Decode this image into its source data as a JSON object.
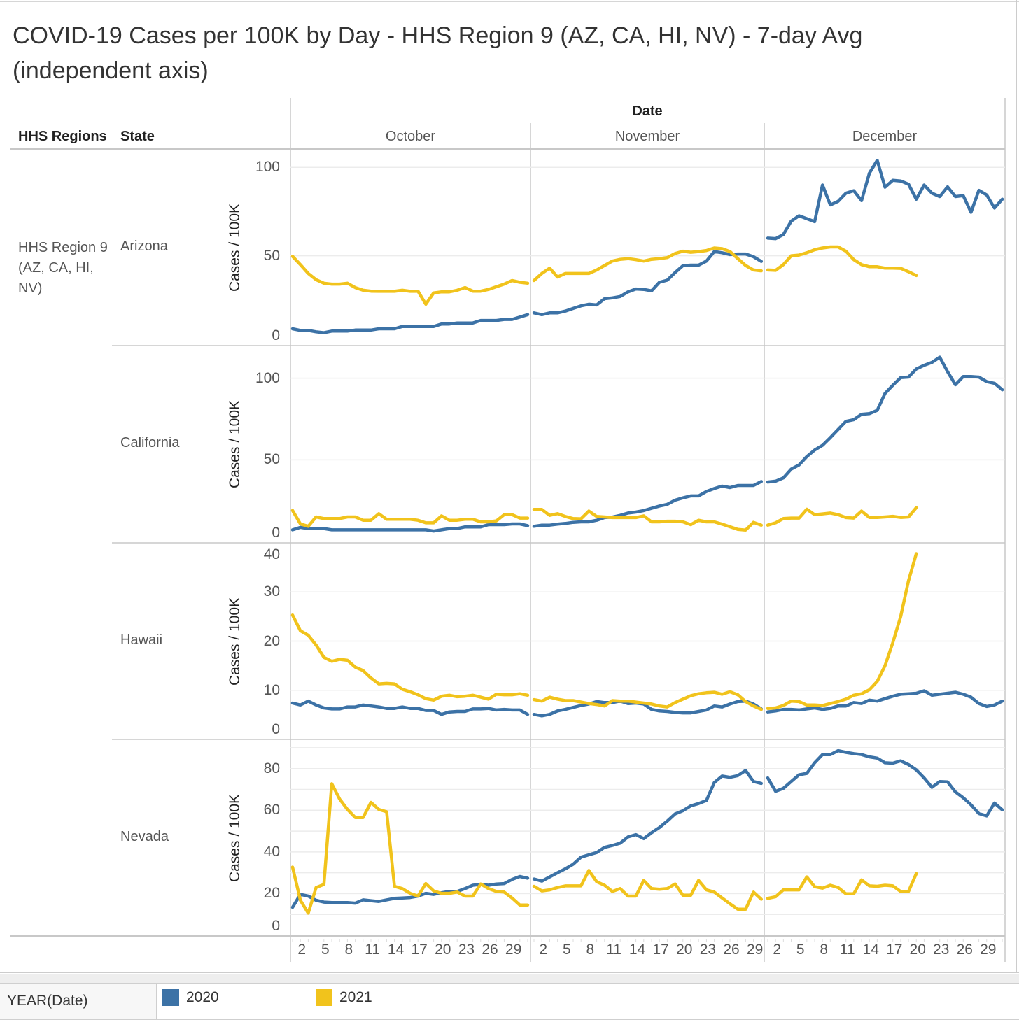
{
  "title": "COVID-19 Cases per 100K by Day - HHS Region 9 (AZ, CA, HI, NV) - 7-day Avg (independent axis)",
  "headers": {
    "regions": "HHS Regions",
    "state": "State",
    "date": "Date"
  },
  "region_label": "HHS Region 9 (AZ, CA, HI, NV)",
  "chart_data": {
    "type": "line",
    "title": "COVID-19 Cases per 100K by Day - HHS Region 9 (AZ, CA, HI, NV) - 7-day Avg (independent axis)",
    "xlabel": "Date",
    "ylabel": "Cases / 100K",
    "columns": [
      "October",
      "November",
      "December"
    ],
    "x_ticks": [
      2,
      5,
      8,
      11,
      14,
      17,
      20,
      23,
      26,
      29
    ],
    "grid": true,
    "legend": {
      "title": "YEAR(Date)",
      "placement": "bottom",
      "entries": [
        {
          "label": "2020",
          "color": "#3c72a6"
        },
        {
          "label": "2021",
          "color": "#f1c31c"
        }
      ]
    },
    "rows": [
      {
        "state": "Arizona",
        "ylim": [
          0,
          110
        ],
        "y_ticks": [
          0,
          50,
          100
        ],
        "gridlines": [
          50,
          100
        ],
        "series": {
          "2020": [
            [
              8.7,
              7.8,
              7.8,
              7.0,
              6.5,
              7.4,
              7.4,
              7.4,
              8,
              8,
              8,
              8.7,
              8.7,
              8.7,
              10,
              10,
              10,
              10,
              10,
              11.4,
              11.4,
              12,
              12,
              12,
              13.4,
              13.4,
              13.4,
              14,
              14,
              15.3,
              16.7
            ],
            [
              17.7,
              16.7,
              17.7,
              17.7,
              18.7,
              20.2,
              21.7,
              22.6,
              22.2,
              25.7,
              26.2,
              27,
              29.6,
              31.2,
              31,
              30.2,
              35,
              36.2,
              40.5,
              44.4,
              44.7,
              44.7,
              47,
              52.4,
              51.7,
              50.7,
              51,
              51,
              49.5,
              46.8
            ],
            [
              60,
              59.7,
              62,
              69.6,
              72.6,
              71,
              69.3,
              90,
              78.8,
              80.8,
              85.4,
              86.8,
              81.2,
              96.7,
              104,
              88.8,
              92.7,
              92.3,
              90.5,
              82,
              90,
              85.4,
              83.5,
              89,
              83.5,
              84,
              74.6,
              87,
              84.4,
              77,
              82
            ]
          ],
          "2021": [
            [
              49.7,
              45,
              40,
              36.5,
              34.5,
              34,
              34,
              34.5,
              32,
              30.5,
              30,
              29.9,
              29.9,
              29.9,
              30.5,
              29.9,
              30,
              22.6,
              29,
              29.6,
              29.6,
              30.5,
              32,
              30,
              30,
              31,
              32.5,
              34,
              36,
              35,
              34.5
            ],
            [
              36,
              40,
              43,
              38,
              40,
              40,
              40,
              40,
              42,
              44.5,
              47,
              48,
              48.4,
              47.8,
              47,
              48,
              48.4,
              49,
              51.3,
              52.6,
              52,
              52.4,
              53,
              54.4,
              54,
              52.4,
              48.4,
              44.5,
              42,
              41.5
            ],
            [
              42,
              41.8,
              45,
              50,
              50.4,
              51.7,
              53.4,
              54.4,
              55,
              55,
              52.6,
              47.8,
              45,
              43.8,
              43.8,
              43,
              43,
              42.9,
              41,
              38.8
            ]
          ]
        }
      },
      {
        "state": "California",
        "ylim": [
          0,
          120
        ],
        "y_ticks": [
          0,
          50,
          100
        ],
        "gridlines": [
          50,
          100
        ],
        "series": {
          "2020": [
            [
              7.1,
              8.6,
              7.9,
              7.9,
              7.9,
              7.1,
              7.1,
              7.1,
              7.1,
              7.1,
              7.1,
              7.1,
              7.1,
              7.1,
              7.1,
              7.1,
              7.1,
              7.1,
              6.4,
              7.1,
              7.9,
              7.9,
              8.9,
              8.9,
              8.9,
              10.3,
              10.3,
              10.3,
              10.7,
              10.7,
              9.7
            ],
            [
              9.3,
              10,
              10,
              10.6,
              11,
              11.7,
              12,
              12,
              13,
              14.6,
              14.9,
              16,
              17.4,
              18,
              18.9,
              20.3,
              21.7,
              22.7,
              25.3,
              26.7,
              27.9,
              27.9,
              30.6,
              32.4,
              33.9,
              33,
              34.3,
              34.3,
              34.3,
              36.7
            ],
            [
              36.4,
              36.9,
              38.9,
              44.3,
              46.9,
              52,
              56,
              58.9,
              63.6,
              68.6,
              73.6,
              74.6,
              77.9,
              78.3,
              80.3,
              90.7,
              95.7,
              100.4,
              100.7,
              105.7,
              107.9,
              109.7,
              112.9,
              104,
              96,
              101,
              101,
              100.7,
              97.9,
              96.9,
              92.9
            ]
          ],
          "2021": [
            [
              19,
              10.7,
              9.3,
              15,
              14,
              14,
              14,
              15,
              15,
              13,
              13,
              17,
              13.6,
              13.6,
              13.6,
              13.6,
              13,
              11.4,
              11.4,
              15.7,
              13,
              13,
              13.6,
              13.6,
              12,
              12,
              12.6,
              16.4,
              16.4,
              14.3,
              14.3
            ],
            [
              19.6,
              19.6,
              16,
              17,
              15.3,
              14,
              13.9,
              18.6,
              15.3,
              15,
              14.6,
              14.6,
              14.6,
              14.6,
              15.7,
              12,
              12,
              12.4,
              12.4,
              12,
              10.3,
              13,
              12,
              12,
              10.6,
              9,
              7.4,
              7,
              11.7,
              10
            ],
            [
              10,
              11.4,
              14,
              14.3,
              14.3,
              19.7,
              16.4,
              16.9,
              17.4,
              16.4,
              14.6,
              14.3,
              18.6,
              14.7,
              14.7,
              15,
              15.4,
              14.7,
              15,
              20.7
            ]
          ]
        }
      },
      {
        "state": "Hawaii",
        "ylim": [
          0,
          40
        ],
        "y_ticks": [
          0,
          10,
          20,
          30,
          40
        ],
        "gridlines": [
          10,
          20,
          30
        ],
        "series": {
          "2020": [
            [
              7.4,
              7,
              7.8,
              7,
              6.4,
              6.2,
              6.2,
              6.6,
              6.6,
              7,
              6.8,
              6.6,
              6.3,
              6.3,
              6.6,
              6.3,
              6.3,
              5.9,
              5.9,
              5.1,
              5.6,
              5.7,
              5.7,
              6.2,
              6.2,
              6.3,
              6,
              6.1,
              6,
              6,
              5.1
            ],
            [
              5.1,
              4.8,
              5.1,
              5.8,
              6.1,
              6.5,
              6.9,
              7.2,
              7.7,
              7.5,
              7.5,
              7.8,
              7.3,
              7.4,
              7.2,
              6.1,
              5.8,
              5.7,
              5.5,
              5.4,
              5.4,
              5.7,
              6,
              6.8,
              6.6,
              7.2,
              7.7,
              7.8,
              7.2,
              6.2
            ],
            [
              5.6,
              5.8,
              6.1,
              6.1,
              6,
              6.2,
              6.4,
              6.1,
              6.3,
              6.8,
              6.8,
              7.5,
              7.3,
              8,
              7.8,
              8.3,
              8.8,
              9.2,
              9.3,
              9.4,
              9.9,
              9,
              9.2,
              9.4,
              9.6,
              9.2,
              8.6,
              7.3,
              6.7,
              7,
              7.8
            ]
          ],
          "2021": [
            [
              25.3,
              22.1,
              21.2,
              19.2,
              16.7,
              15.9,
              16.3,
              16.1,
              14.7,
              14,
              12.5,
              11.3,
              11.4,
              11.3,
              10.2,
              9.7,
              9.1,
              8.3,
              8,
              8.8,
              9,
              8.7,
              8.8,
              9,
              8.6,
              8.2,
              9.2,
              9.1,
              9.1,
              9.3,
              9
            ],
            [
              8.1,
              7.8,
              8.6,
              8.2,
              7.9,
              7.9,
              7.6,
              7.3,
              7.1,
              6.8,
              7.9,
              7.8,
              7.8,
              7.6,
              7.4,
              7.2,
              6.8,
              6.6,
              7.5,
              8.2,
              8.9,
              9.3,
              9.5,
              9.6,
              9.2,
              9.7,
              9.1,
              7.7,
              6.8,
              6.1
            ],
            [
              6.3,
              6.4,
              6.9,
              7.8,
              7.7,
              7,
              7,
              6.9,
              7.3,
              7.7,
              8.2,
              9,
              9.3,
              10.1,
              11.8,
              15,
              19.7,
              25,
              32.3,
              37.8
            ]
          ]
        }
      },
      {
        "state": "Nevada",
        "ylim": [
          0,
          94
        ],
        "y_ticks": [
          0,
          20,
          40,
          60,
          80
        ],
        "gridlines": [
          10,
          20,
          30,
          40,
          50,
          60,
          70,
          80,
          90
        ],
        "series": {
          "2020": [
            [
              13.4,
              19.6,
              18.8,
              16.8,
              15.9,
              15.7,
              15.7,
              15.7,
              15.4,
              17,
              16.6,
              16.2,
              17,
              17.7,
              17.9,
              18.1,
              18.8,
              20.1,
              19.6,
              20.4,
              21,
              21,
              22.4,
              24,
              24.4,
              24,
              24.6,
              24.8,
              26.8,
              28.2,
              27.4
            ],
            [
              27,
              26,
              28,
              30,
              31.9,
              34.1,
              37.5,
              38.6,
              39.7,
              42.2,
              43.1,
              44.2,
              47.2,
              48.3,
              46.4,
              49.2,
              51.7,
              54.8,
              58.2,
              59.8,
              62.1,
              63.2,
              64.7,
              73.3,
              76.4,
              75.8,
              76.6,
              79.1,
              73.8,
              72.9
            ],
            [
              75.5,
              69.1,
              70.5,
              73.8,
              77,
              77.7,
              82.8,
              86.7,
              86.7,
              88.6,
              87.8,
              87.2,
              86.7,
              85.6,
              85,
              82.8,
              82.6,
              83.7,
              81.9,
              79.4,
              75.5,
              71,
              73.8,
              73.6,
              68.8,
              66,
              62.6,
              58.4,
              57.3,
              63.5,
              60.2
            ]
          ],
          "2021": [
            [
              32.7,
              16.8,
              10.6,
              22.9,
              24.4,
              72.7,
              65.4,
              60.4,
              56.5,
              56.5,
              63.8,
              60.4,
              59.3,
              23.5,
              22.4,
              20.1,
              18.8,
              24.8,
              21.3,
              20.1,
              20.1,
              20.7,
              18.8,
              18.8,
              24.6,
              22.4,
              21,
              20.7,
              17.9,
              14.5,
              14.5
            ],
            [
              23.5,
              21.3,
              21.8,
              22.9,
              23.7,
              23.7,
              23.7,
              31.1,
              25.7,
              24,
              21,
              22.4,
              18.8,
              18.8,
              26.3,
              22.4,
              22.1,
              22.4,
              24.6,
              19.2,
              19.2,
              26.3,
              21.8,
              20.7,
              17.9,
              15.1,
              12.5,
              12.5,
              20.7,
              17.3
            ],
            [
              17.7,
              18.5,
              21.8,
              21.8,
              21.8,
              28,
              23.3,
              22.6,
              24,
              22.9,
              19.9,
              19.9,
              26.6,
              23.7,
              23.5,
              24,
              23.7,
              21,
              21,
              29.6
            ]
          ]
        }
      }
    ]
  }
}
